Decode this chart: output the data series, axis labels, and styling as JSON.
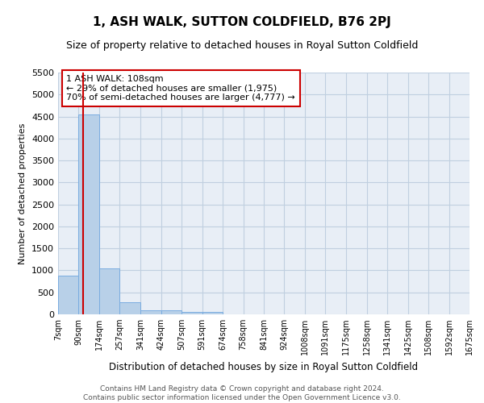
{
  "title": "1, ASH WALK, SUTTON COLDFIELD, B76 2PJ",
  "subtitle": "Size of property relative to detached houses in Royal Sutton Coldfield",
  "xlabel": "Distribution of detached houses by size in Royal Sutton Coldfield",
  "ylabel": "Number of detached properties",
  "footer_line1": "Contains HM Land Registry data © Crown copyright and database right 2024.",
  "footer_line2": "Contains public sector information licensed under the Open Government Licence v3.0.",
  "annotation_title": "1 ASH WALK: 108sqm",
  "annotation_line1": "← 29% of detached houses are smaller (1,975)",
  "annotation_line2": "70% of semi-detached houses are larger (4,777) →",
  "property_sqm": 108,
  "bar_edges": [
    7,
    90,
    174,
    257,
    341,
    424,
    507,
    591,
    674,
    758,
    841,
    924,
    1008,
    1091,
    1175,
    1258,
    1341,
    1425,
    1508,
    1592,
    1675
  ],
  "bar_values": [
    880,
    4540,
    1050,
    280,
    90,
    90,
    55,
    55,
    0,
    0,
    0,
    0,
    0,
    0,
    0,
    0,
    0,
    0,
    0,
    0
  ],
  "bar_color": "#b8d0e8",
  "bar_edge_color": "#7aace0",
  "vline_color": "#cc0000",
  "vline_x": 108,
  "grid_color": "#c0cfe0",
  "bg_color": "#e8eef6",
  "ylim": [
    0,
    5500
  ],
  "yticks": [
    0,
    500,
    1000,
    1500,
    2000,
    2500,
    3000,
    3500,
    4000,
    4500,
    5000,
    5500
  ],
  "tick_labels": [
    "7sqm",
    "90sqm",
    "174sqm",
    "257sqm",
    "341sqm",
    "424sqm",
    "507sqm",
    "591sqm",
    "674sqm",
    "758sqm",
    "841sqm",
    "924sqm",
    "1008sqm",
    "1091sqm",
    "1175sqm",
    "1258sqm",
    "1341sqm",
    "1425sqm",
    "1508sqm",
    "1592sqm",
    "1675sqm"
  ],
  "title_fontsize": 11,
  "subtitle_fontsize": 9,
  "xlabel_fontsize": 8.5,
  "ylabel_fontsize": 8,
  "xtick_fontsize": 7,
  "ytick_fontsize": 8,
  "annotation_fontsize": 8,
  "footer_fontsize": 6.5
}
